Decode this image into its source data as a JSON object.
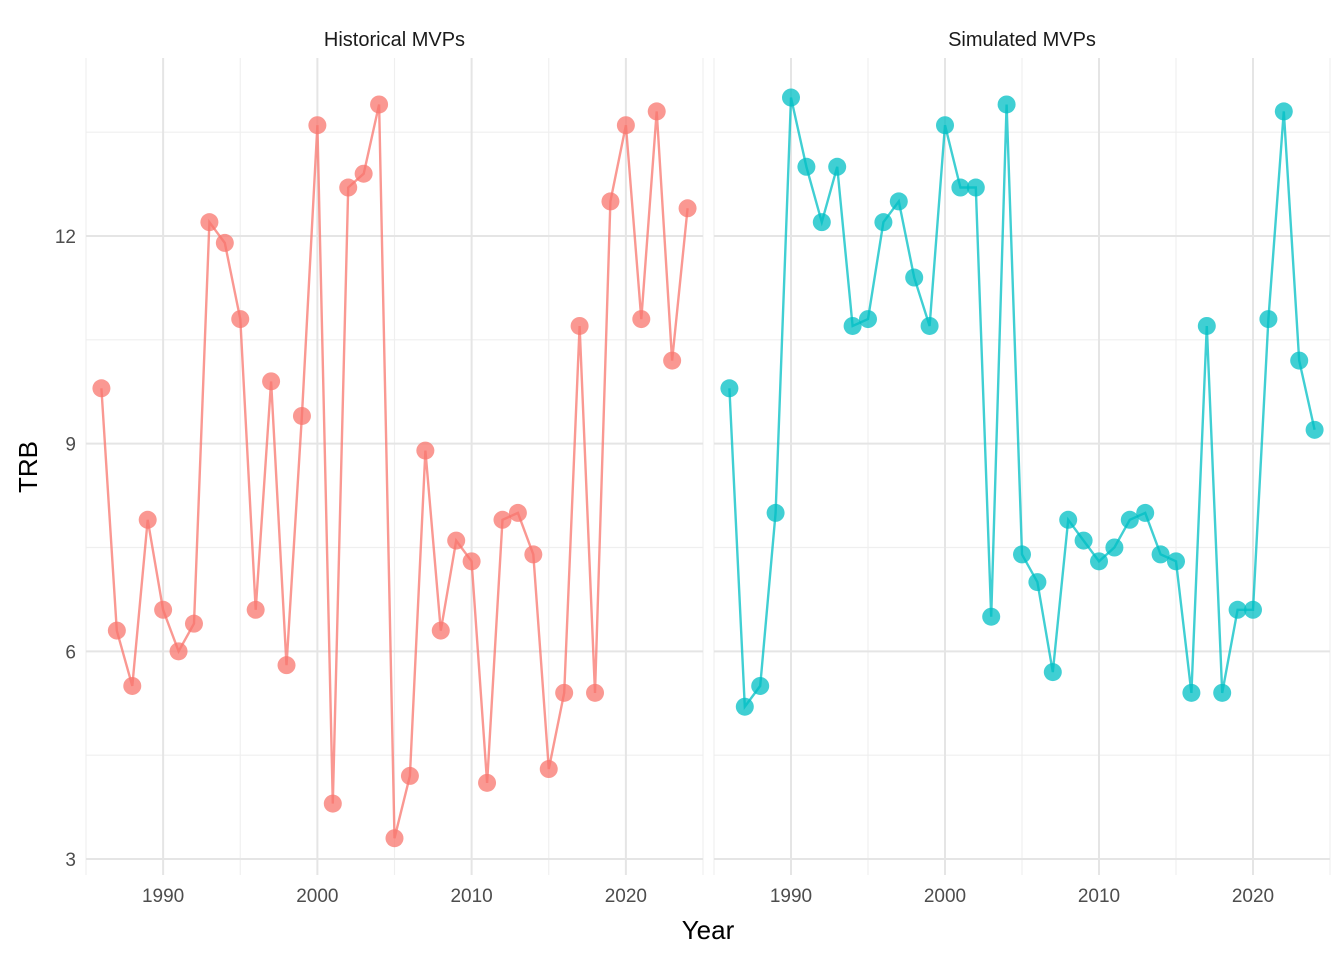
{
  "chart_data": {
    "type": "line",
    "xlabel": "Year",
    "ylabel": "TRB",
    "xlim": [
      1985,
      2025
    ],
    "ylim": [
      3,
      14.3
    ],
    "x_ticks": [
      1990,
      2000,
      2010,
      2020
    ],
    "y_ticks": [
      3,
      6,
      9,
      12
    ],
    "grid": true,
    "panels": [
      {
        "title": "Historical MVPs",
        "color": "#F8766D",
        "x": [
          1986,
          1987,
          1988,
          1989,
          1990,
          1991,
          1992,
          1993,
          1994,
          1995,
          1996,
          1997,
          1998,
          1999,
          2000,
          2001,
          2002,
          2003,
          2004,
          2005,
          2006,
          2007,
          2008,
          2009,
          2010,
          2011,
          2012,
          2013,
          2014,
          2015,
          2016,
          2017,
          2018,
          2019,
          2020,
          2021,
          2022,
          2023,
          2024
        ],
        "y": [
          9.8,
          6.3,
          5.5,
          7.9,
          6.6,
          6.0,
          6.4,
          12.2,
          11.9,
          10.8,
          6.6,
          9.9,
          5.8,
          9.4,
          13.6,
          3.8,
          12.7,
          12.9,
          13.9,
          3.3,
          4.2,
          8.9,
          6.3,
          7.6,
          7.3,
          4.1,
          7.9,
          8.0,
          7.4,
          4.3,
          5.4,
          10.7,
          5.4,
          12.5,
          13.6,
          10.8,
          13.8,
          10.2,
          12.4
        ]
      },
      {
        "title": "Simulated MVPs",
        "color": "#00BFC4",
        "x": [
          1986,
          1987,
          1988,
          1989,
          1990,
          1991,
          1992,
          1993,
          1994,
          1995,
          1996,
          1997,
          1998,
          1999,
          2000,
          2001,
          2002,
          2003,
          2004,
          2005,
          2006,
          2007,
          2008,
          2009,
          2010,
          2011,
          2012,
          2013,
          2014,
          2015,
          2016,
          2017,
          2018,
          2019,
          2020,
          2021,
          2022,
          2023,
          2024
        ],
        "y": [
          9.8,
          5.2,
          5.5,
          8.0,
          14.0,
          13.0,
          12.2,
          13.0,
          10.7,
          10.8,
          12.2,
          12.5,
          11.4,
          10.7,
          13.6,
          12.7,
          12.7,
          6.5,
          13.9,
          7.4,
          7.0,
          5.7,
          7.9,
          7.6,
          7.3,
          7.5,
          7.9,
          8.0,
          7.4,
          7.3,
          5.4,
          10.7,
          5.4,
          6.6,
          6.6,
          10.8,
          13.8,
          10.2,
          9.2
        ]
      }
    ]
  }
}
